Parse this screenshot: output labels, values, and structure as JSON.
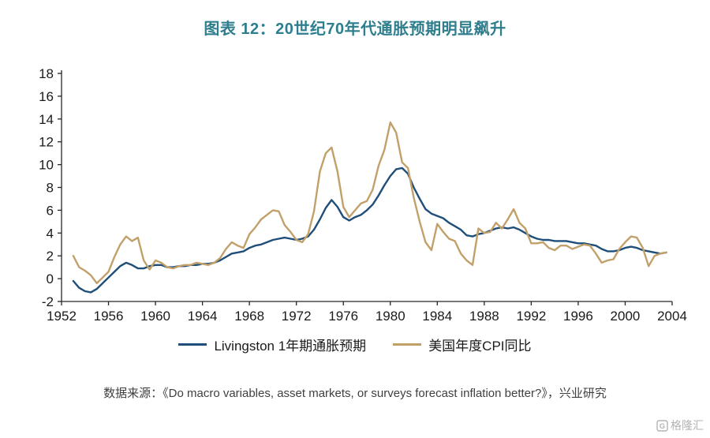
{
  "title": "图表 12：20世纪70年代通胀预期明显飙升",
  "source": "数据来源：《Do macro variables, asset markets, or surveys forecast inflation better?》，兴业研究",
  "watermark": "格隆汇",
  "colors": {
    "title": "#2e7e8e",
    "livingston_line": "#1f4e79",
    "cpi_line": "#c2a06a",
    "axis": "#262626",
    "source_text": "#3f3f3f",
    "watermark_text": "#b3b3b3"
  },
  "chart_data": {
    "type": "line",
    "title": "图表 12：20世纪70年代通胀预期明显飙升",
    "xlabel": "",
    "ylabel": "",
    "xlim": [
      1952,
      2004
    ],
    "ylim": [
      -2,
      18
    ],
    "x_ticks": [
      1952,
      1956,
      1960,
      1964,
      1968,
      1972,
      1976,
      1980,
      1984,
      1988,
      1992,
      1996,
      2000,
      2004
    ],
    "y_ticks": [
      -2,
      0,
      2,
      4,
      6,
      8,
      10,
      12,
      14,
      16,
      18
    ],
    "grid": false,
    "legend_position": "bottom",
    "series": [
      {
        "id": "livingston",
        "name": "Livingston 1年期通胀预期",
        "color": "#1f4e79",
        "x_start": 1953.0,
        "x_step": 0.5,
        "values": [
          -0.2,
          -0.8,
          -1.1,
          -1.2,
          -0.9,
          -0.4,
          0.1,
          0.6,
          1.1,
          1.4,
          1.2,
          0.9,
          0.9,
          1.1,
          1.2,
          1.2,
          1.0,
          1.0,
          1.1,
          1.1,
          1.2,
          1.2,
          1.3,
          1.3,
          1.4,
          1.6,
          1.9,
          2.2,
          2.3,
          2.4,
          2.7,
          2.9,
          3.0,
          3.2,
          3.4,
          3.5,
          3.6,
          3.5,
          3.4,
          3.5,
          3.7,
          4.3,
          5.2,
          6.2,
          6.9,
          6.3,
          5.4,
          5.1,
          5.4,
          5.6,
          6.0,
          6.5,
          7.3,
          8.2,
          9.0,
          9.6,
          9.7,
          9.2,
          8.0,
          7.0,
          6.1,
          5.7,
          5.5,
          5.3,
          4.9,
          4.6,
          4.3,
          3.8,
          3.7,
          3.9,
          4.0,
          4.2,
          4.4,
          4.5,
          4.4,
          4.5,
          4.3,
          4.0,
          3.7,
          3.5,
          3.4,
          3.4,
          3.3,
          3.3,
          3.3,
          3.2,
          3.1,
          3.1,
          3.0,
          2.9,
          2.6,
          2.4,
          2.4,
          2.5,
          2.7,
          2.8,
          2.7,
          2.5,
          2.4,
          2.3,
          2.2,
          2.3
        ]
      },
      {
        "id": "cpi",
        "name": "美国年度CPI同比",
        "color": "#c2a06a",
        "x_start": 1953.0,
        "x_step": 0.5,
        "values": [
          2.0,
          1.0,
          0.7,
          0.3,
          -0.4,
          0.1,
          0.6,
          1.9,
          3.0,
          3.7,
          3.3,
          3.6,
          1.6,
          0.8,
          1.6,
          1.4,
          1.0,
          0.9,
          1.1,
          1.2,
          1.2,
          1.4,
          1.3,
          1.2,
          1.4,
          1.8,
          2.6,
          3.2,
          2.9,
          2.7,
          3.9,
          4.5,
          5.2,
          5.6,
          6.0,
          5.9,
          4.7,
          4.1,
          3.4,
          3.2,
          3.9,
          5.9,
          9.4,
          11.0,
          11.5,
          9.4,
          6.3,
          5.4,
          6.0,
          6.6,
          6.8,
          7.8,
          9.9,
          11.3,
          13.7,
          12.8,
          10.2,
          9.7,
          7.1,
          5.0,
          3.2,
          2.5,
          4.8,
          4.1,
          3.5,
          3.3,
          2.2,
          1.6,
          1.2,
          4.4,
          4.0,
          4.1,
          4.9,
          4.4,
          5.2,
          6.1,
          4.9,
          4.4,
          3.1,
          3.1,
          3.2,
          2.7,
          2.5,
          2.9,
          2.9,
          2.6,
          2.8,
          3.0,
          2.9,
          2.2,
          1.4,
          1.6,
          1.7,
          2.6,
          3.2,
          3.7,
          3.6,
          2.7,
          1.1,
          2.0,
          2.2,
          2.3
        ]
      }
    ]
  }
}
